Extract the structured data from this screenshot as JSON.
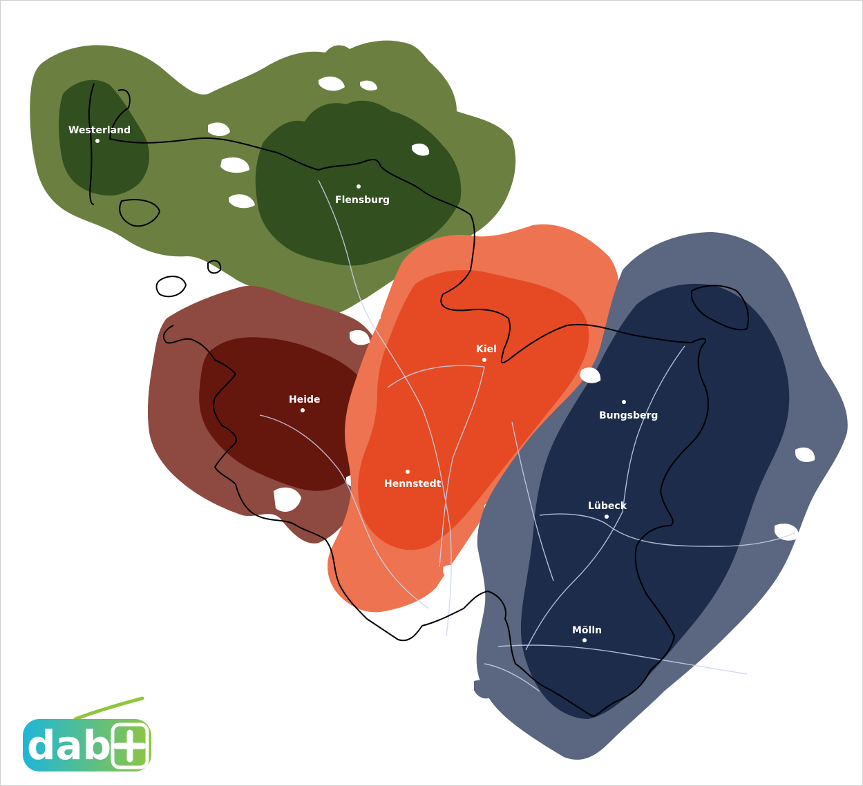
{
  "map": {
    "regions": [
      {
        "name": "north-west",
        "outer_color": "#6b8040",
        "inner_color": "#324f1f"
      },
      {
        "name": "west",
        "outer_color": "#8e4a40",
        "inner_color": "#65160d"
      },
      {
        "name": "center",
        "outer_color": "#ee7350",
        "inner_color": "#e54a24"
      },
      {
        "name": "east",
        "outer_color": "#5b6680",
        "inner_color": "#1e2c4b"
      }
    ],
    "cities": [
      {
        "name": "Westerland"
      },
      {
        "name": "Flensburg"
      },
      {
        "name": "Kiel"
      },
      {
        "name": "Heide"
      },
      {
        "name": "Bungsberg"
      },
      {
        "name": "Hennstedt"
      },
      {
        "name": "Lübeck"
      },
      {
        "name": "Mölln"
      }
    ],
    "border_color": "#000000",
    "road_color": "#c9d4ee"
  },
  "logo": {
    "text": "dab",
    "gradient": [
      "#1fb6d8",
      "#8fc63f"
    ]
  }
}
